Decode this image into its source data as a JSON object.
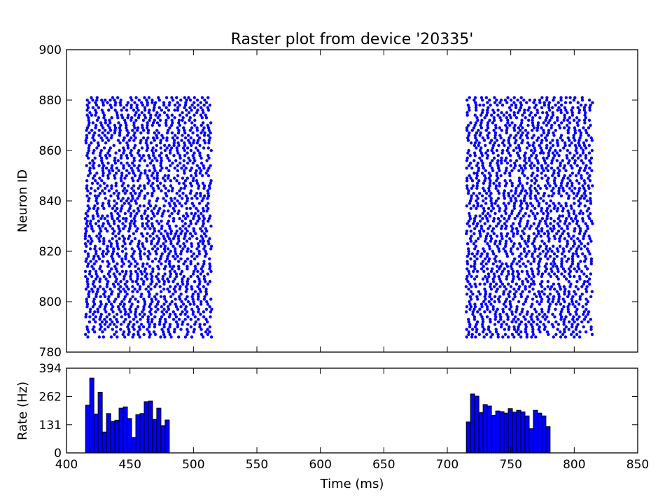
{
  "chart_data": [
    {
      "type": "scatter",
      "title": "Raster plot from device '20335'",
      "xlabel": "",
      "ylabel": "Neuron ID",
      "xlim": [
        400,
        850
      ],
      "ylim": [
        780,
        900
      ],
      "yticks": [
        "780",
        "800",
        "820",
        "840",
        "860",
        "880",
        "900"
      ],
      "marker_color": "#0000ff",
      "neuron_id_range": [
        786,
        881
      ],
      "bursts": [
        {
          "t_start": 415,
          "t_end": 514
        },
        {
          "t_start": 715,
          "t_end": 814
        }
      ],
      "grid": false
    },
    {
      "type": "bar",
      "xlabel": "Time (ms)",
      "ylabel": "Rate (Hz)",
      "xlim": [
        400,
        850
      ],
      "ylim": [
        0,
        394
      ],
      "yticks": [
        "0",
        "131",
        "262",
        "394"
      ],
      "xticks": [
        "400",
        "450",
        "500",
        "550",
        "600",
        "650",
        "700",
        "750",
        "800",
        "850"
      ],
      "bar_color": "#0000ff",
      "bin_width": 3.3,
      "series": [
        {
          "x_start": 415,
          "values": [
            222,
            348,
            181,
            282,
            97,
            183,
            147,
            152,
            208,
            214,
            160,
            72,
            178,
            183,
            238,
            241,
            156,
            208,
            127,
            153
          ]
        },
        {
          "x_start": 715,
          "values": [
            144,
            274,
            264,
            188,
            225,
            218,
            174,
            195,
            192,
            185,
            206,
            190,
            198,
            191,
            172,
            113,
            198,
            185,
            172,
            122
          ]
        }
      ],
      "grid": false
    }
  ]
}
